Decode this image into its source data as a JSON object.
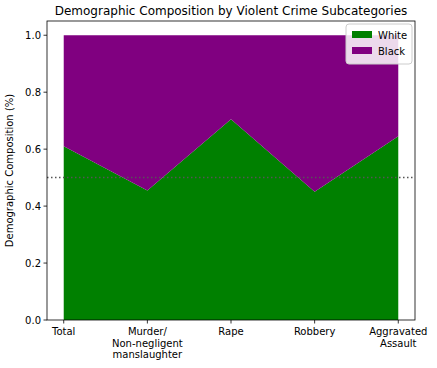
{
  "chart_data": {
    "type": "area",
    "title": "Demographic Composition by Violent Crime Subcategories",
    "y_label": "Demographic Composition (%)",
    "categories": [
      "Total",
      "Murder/\nNon-negligent\nmanslaughter",
      "Rape",
      "Robbery",
      "Aggravated\nAssault"
    ],
    "series": [
      {
        "name": "White",
        "color": "#008000",
        "values": [
          0.61,
          0.455,
          0.705,
          0.45,
          0.645
        ]
      },
      {
        "name": "Black",
        "color": "#800080",
        "values": [
          0.39,
          0.545,
          0.295,
          0.55,
          0.355
        ]
      }
    ],
    "stacked": true,
    "ylim": [
      0,
      1.05
    ],
    "yticks": [
      {
        "value": 0,
        "label": "0.0"
      },
      0.2,
      0.4,
      0.6,
      0.8,
      {
        "value": 1,
        "label": "1.0"
      }
    ],
    "hline": 0.5,
    "legend": "upper right"
  }
}
